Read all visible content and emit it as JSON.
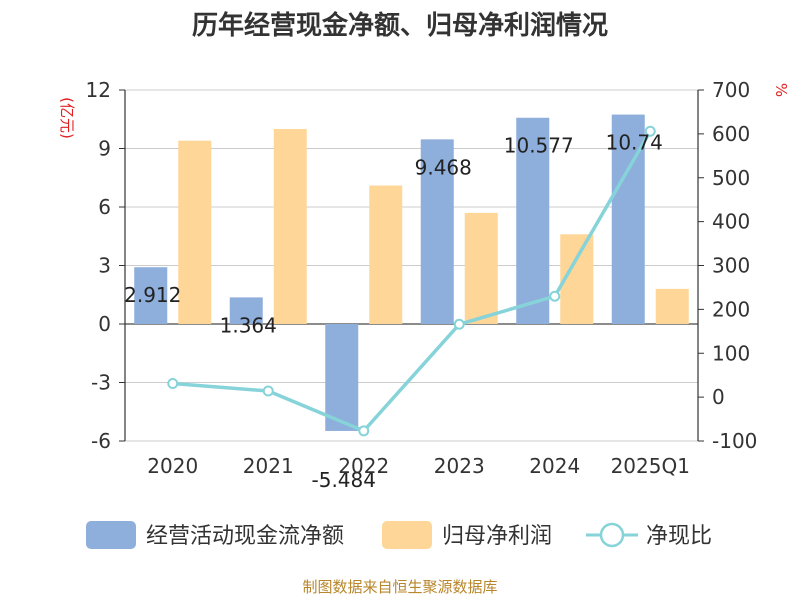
{
  "chart_data": {
    "type": "bar",
    "title": "历年经营现金净额、归母净利润情况",
    "y_unit_left": "(亿元)",
    "y_unit_right": "%",
    "categories": [
      "2020",
      "2021",
      "2022",
      "2023",
      "2024",
      "2025Q1"
    ],
    "ylim_left": [
      -6,
      12
    ],
    "yticks_left": [
      12,
      9,
      6,
      3,
      0,
      -3,
      -6
    ],
    "ytick_labels_left": [
      "12",
      "9",
      "6",
      "3",
      "0",
      "-3",
      "-6"
    ],
    "ylim_right": [
      -100,
      700
    ],
    "yticks_right": [
      700,
      600,
      500,
      400,
      300,
      200,
      100,
      0,
      -100
    ],
    "ytick_labels_right": [
      "700",
      "600",
      "500",
      "400",
      "300",
      "200",
      "100",
      "0",
      "-100"
    ],
    "series": [
      {
        "name": "经营活动现金流净额",
        "kind": "bar",
        "axis": "left",
        "color": "#8eaedc",
        "values": [
          2.912,
          1.364,
          -5.484,
          9.468,
          10.577,
          10.74
        ],
        "labels": [
          "2.912",
          "1.364",
          "-5.484",
          "9.468",
          "10.577",
          "10.74"
        ]
      },
      {
        "name": "归母净利润",
        "kind": "bar",
        "axis": "left",
        "color": "#fdd698",
        "values": [
          9.4,
          10.0,
          7.1,
          5.7,
          4.6,
          1.8
        ]
      },
      {
        "name": "净现比",
        "kind": "line",
        "axis": "right",
        "color": "#86d3d9",
        "values": [
          31,
          14,
          -77,
          166,
          230,
          606
        ]
      }
    ],
    "grid": true,
    "legend_position": "bottom"
  },
  "source": "制图数据来自恒生聚源数据库"
}
